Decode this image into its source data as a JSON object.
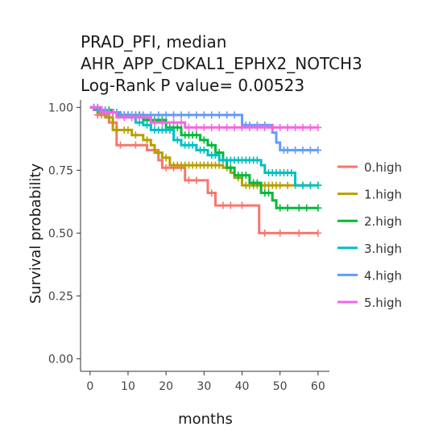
{
  "chart_data": {
    "type": "line",
    "subtype": "kaplan-meier",
    "title_lines": [
      "PRAD_PFI, median",
      "AHR_APP_CDKAL1_EPHX2_NOTCH3",
      "Log-Rank P value= 0.00523"
    ],
    "xlabel": "months",
    "ylabel": "Survival probability",
    "xlim": [
      -2.5,
      63
    ],
    "ylim": [
      -0.05,
      1.03
    ],
    "x_ticks": [
      0,
      10,
      20,
      30,
      40,
      50,
      60
    ],
    "y_ticks": [
      0.0,
      0.25,
      0.5,
      0.75,
      1.0
    ],
    "y_tick_labels": [
      "0.00",
      "0.25",
      "0.50",
      "0.75",
      "1.00"
    ],
    "grid": false,
    "legend_position": "right",
    "series": [
      {
        "name": "0.high",
        "color": "#f8766d",
        "steps": [
          [
            0,
            1.0
          ],
          [
            1,
            0.99
          ],
          [
            2,
            0.97
          ],
          [
            5,
            0.94
          ],
          [
            7,
            0.85
          ],
          [
            15,
            0.83
          ],
          [
            18,
            0.79
          ],
          [
            19,
            0.76
          ],
          [
            25,
            0.71
          ],
          [
            31,
            0.66
          ],
          [
            33,
            0.61
          ],
          [
            44.5,
            0.5
          ],
          [
            60,
            0.5
          ]
        ],
        "censors": [
          2,
          3,
          6,
          8,
          12,
          20,
          22,
          24,
          26,
          28,
          32,
          35,
          37,
          40,
          46,
          50,
          55,
          60
        ]
      },
      {
        "name": "1.high",
        "color": "#b79f00",
        "steps": [
          [
            0,
            1.0
          ],
          [
            2,
            0.98
          ],
          [
            4,
            0.96
          ],
          [
            6,
            0.91
          ],
          [
            11,
            0.89
          ],
          [
            14,
            0.87
          ],
          [
            16,
            0.85
          ],
          [
            17,
            0.82
          ],
          [
            19,
            0.8
          ],
          [
            21,
            0.77
          ],
          [
            35,
            0.76
          ],
          [
            37,
            0.74
          ],
          [
            38,
            0.72
          ],
          [
            40,
            0.69
          ],
          [
            60,
            0.69
          ]
        ],
        "censors": [
          1,
          3,
          5,
          7,
          9,
          10,
          12,
          15,
          18,
          20,
          22,
          23,
          24,
          25,
          26,
          27,
          28,
          29,
          30,
          31,
          32,
          33,
          34,
          36,
          39,
          41,
          42,
          43,
          44,
          45,
          46,
          47,
          48,
          49,
          50,
          52,
          54,
          56,
          58,
          60
        ]
      },
      {
        "name": "2.high",
        "color": "#00ba38",
        "steps": [
          [
            0,
            1.0
          ],
          [
            3,
            0.99
          ],
          [
            6,
            0.98
          ],
          [
            8,
            0.97
          ],
          [
            14,
            0.95
          ],
          [
            20,
            0.92
          ],
          [
            24,
            0.89
          ],
          [
            29,
            0.87
          ],
          [
            31,
            0.85
          ],
          [
            33,
            0.82
          ],
          [
            35,
            0.79
          ],
          [
            36,
            0.76
          ],
          [
            38,
            0.73
          ],
          [
            42,
            0.7
          ],
          [
            45,
            0.66
          ],
          [
            48,
            0.63
          ],
          [
            49,
            0.6
          ],
          [
            60,
            0.6
          ]
        ],
        "censors": [
          1,
          2,
          4,
          5,
          7,
          9,
          10,
          11,
          12,
          13,
          15,
          16,
          17,
          18,
          19,
          21,
          22,
          23,
          25,
          26,
          27,
          28,
          30,
          32,
          34,
          37,
          39,
          40,
          41,
          43,
          44,
          46,
          47,
          50,
          52,
          55,
          57,
          60
        ]
      },
      {
        "name": "3.high",
        "color": "#00bfc4",
        "steps": [
          [
            0,
            1.0
          ],
          [
            1,
            0.99
          ],
          [
            3,
            0.98
          ],
          [
            7,
            0.97
          ],
          [
            10,
            0.96
          ],
          [
            12,
            0.94
          ],
          [
            14,
            0.93
          ],
          [
            16,
            0.91
          ],
          [
            22,
            0.87
          ],
          [
            24,
            0.85
          ],
          [
            28,
            0.83
          ],
          [
            31,
            0.81
          ],
          [
            34,
            0.79
          ],
          [
            45,
            0.77
          ],
          [
            46,
            0.74
          ],
          [
            54,
            0.69
          ],
          [
            60,
            0.69
          ]
        ],
        "censors": [
          2,
          4,
          5,
          6,
          8,
          9,
          11,
          13,
          15,
          17,
          18,
          19,
          20,
          21,
          23,
          25,
          26,
          27,
          29,
          30,
          32,
          33,
          35,
          36,
          37,
          38,
          39,
          40,
          41,
          42,
          43,
          44,
          47,
          48,
          49,
          50,
          51,
          52,
          53,
          56,
          58,
          60
        ]
      },
      {
        "name": "4.high",
        "color": "#619cff",
        "steps": [
          [
            0,
            1.0
          ],
          [
            3,
            0.99
          ],
          [
            5,
            0.98
          ],
          [
            8,
            0.97
          ],
          [
            40,
            0.93
          ],
          [
            48,
            0.9
          ],
          [
            49,
            0.86
          ],
          [
            50,
            0.83
          ],
          [
            60,
            0.83
          ]
        ],
        "censors": [
          1,
          2,
          4,
          6,
          7,
          9,
          10,
          11,
          12,
          14,
          16,
          18,
          20,
          22,
          24,
          26,
          28,
          30,
          32,
          34,
          36,
          38,
          41,
          42,
          44,
          46,
          51,
          52,
          54,
          56,
          58,
          60
        ]
      },
      {
        "name": "5.high",
        "color": "#f564e3",
        "steps": [
          [
            0,
            1.0
          ],
          [
            3,
            0.98
          ],
          [
            7,
            0.96
          ],
          [
            16,
            0.94
          ],
          [
            25,
            0.92
          ],
          [
            60,
            0.92
          ]
        ],
        "censors": [
          1,
          2,
          4,
          5,
          6,
          9,
          11,
          13,
          17,
          19,
          22,
          24,
          26,
          28,
          30,
          32,
          34,
          36,
          38,
          40,
          42,
          44,
          46,
          48,
          50,
          52,
          54,
          56,
          58,
          60
        ]
      }
    ]
  }
}
